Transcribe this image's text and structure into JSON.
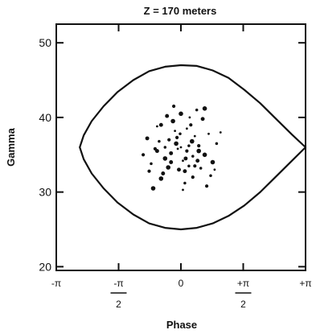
{
  "chart_data": {
    "type": "scatter",
    "title": "Z = 170 meters",
    "xlabel": "Phase",
    "ylabel": "Gamma",
    "xlim": [
      -3.14159,
      3.14159
    ],
    "ylim": [
      19.5,
      52.5
    ],
    "grid": false,
    "yticks": [
      {
        "value": 20,
        "label": "20"
      },
      {
        "value": 30,
        "label": "30"
      },
      {
        "value": 40,
        "label": "40"
      },
      {
        "value": 50,
        "label": "50"
      }
    ],
    "xticks": [
      {
        "value": -3.14159,
        "label": "-π"
      },
      {
        "value": -1.5708,
        "num": "-π",
        "den": "2"
      },
      {
        "value": 0,
        "label": "0"
      },
      {
        "value": 1.5708,
        "num": "+π",
        "den": "2"
      },
      {
        "value": 3.14159,
        "label": "+π"
      }
    ],
    "separatrix": {
      "description": "bucket boundary",
      "x": [
        3.14159,
        2.8,
        2.4,
        2.0,
        1.6,
        1.2,
        0.8,
        0.4,
        0.0,
        -0.4,
        -0.8,
        -1.2,
        -1.6,
        -1.95,
        -2.25,
        -2.45,
        -2.55,
        -2.45,
        -2.25,
        -1.95,
        -1.6,
        -1.2,
        -0.8,
        -0.4,
        0.0,
        0.4,
        0.8,
        1.2,
        1.6,
        2.0,
        2.4,
        2.8,
        3.14159
      ],
      "y": [
        36.0,
        37.7,
        39.8,
        41.9,
        43.7,
        45.3,
        46.3,
        46.9,
        47.0,
        46.8,
        46.2,
        45.0,
        43.4,
        41.5,
        39.5,
        37.6,
        36.0,
        34.4,
        32.5,
        30.5,
        28.6,
        27.0,
        25.8,
        25.2,
        25.0,
        25.2,
        25.8,
        26.8,
        28.2,
        30.0,
        32.1,
        34.2,
        36.0
      ]
    },
    "particles": {
      "x": [
        0.0,
        0.15,
        -0.12,
        0.3,
        -0.25,
        0.05,
        0.45,
        -0.4,
        0.2,
        -0.05,
        0.35,
        -0.3,
        0.6,
        -0.55,
        0.1,
        -0.15,
        0.25,
        -0.2,
        0.5,
        -0.45,
        0.7,
        -0.65,
        0.0,
        0.4,
        -0.35,
        0.15,
        -0.1,
        0.8,
        -0.75,
        0.55,
        -0.6,
        0.3,
        -0.5,
        0.9,
        -0.85,
        0.05,
        0.65,
        -0.7,
        0.2,
        -0.25,
        1.0,
        -0.95,
        0.45,
        -0.4,
        0.12,
        -0.08,
        0.35,
        -0.32,
        0.75,
        -0.5,
        0.22,
        -0.18,
        0.6,
        0.1,
        -0.6,
        0.85,
        -0.8,
        0.28,
        -0.02,
        0.42
      ],
      "y": [
        36.0,
        35.5,
        36.5,
        34.8,
        35.2,
        34.2,
        36.2,
        34.5,
        33.5,
        33.0,
        37.5,
        37.0,
        35.0,
        36.8,
        32.8,
        38.2,
        39.0,
        39.5,
        33.2,
        32.5,
        37.8,
        35.8,
        40.5,
        41.0,
        40.2,
        38.5,
        37.3,
        34.0,
        33.8,
        39.8,
        38.8,
        32.0,
        31.8,
        36.5,
        37.2,
        30.3,
        30.8,
        30.5,
        36.2,
        34.0,
        38.0,
        35.0,
        35.5,
        36.0,
        34.5,
        35.8,
        33.5,
        33.3,
        32.2,
        39.0,
        40.0,
        41.5,
        41.2,
        31.2,
        35.5,
        33.0,
        32.8,
        36.8,
        37.8,
        34.2
      ]
    }
  }
}
